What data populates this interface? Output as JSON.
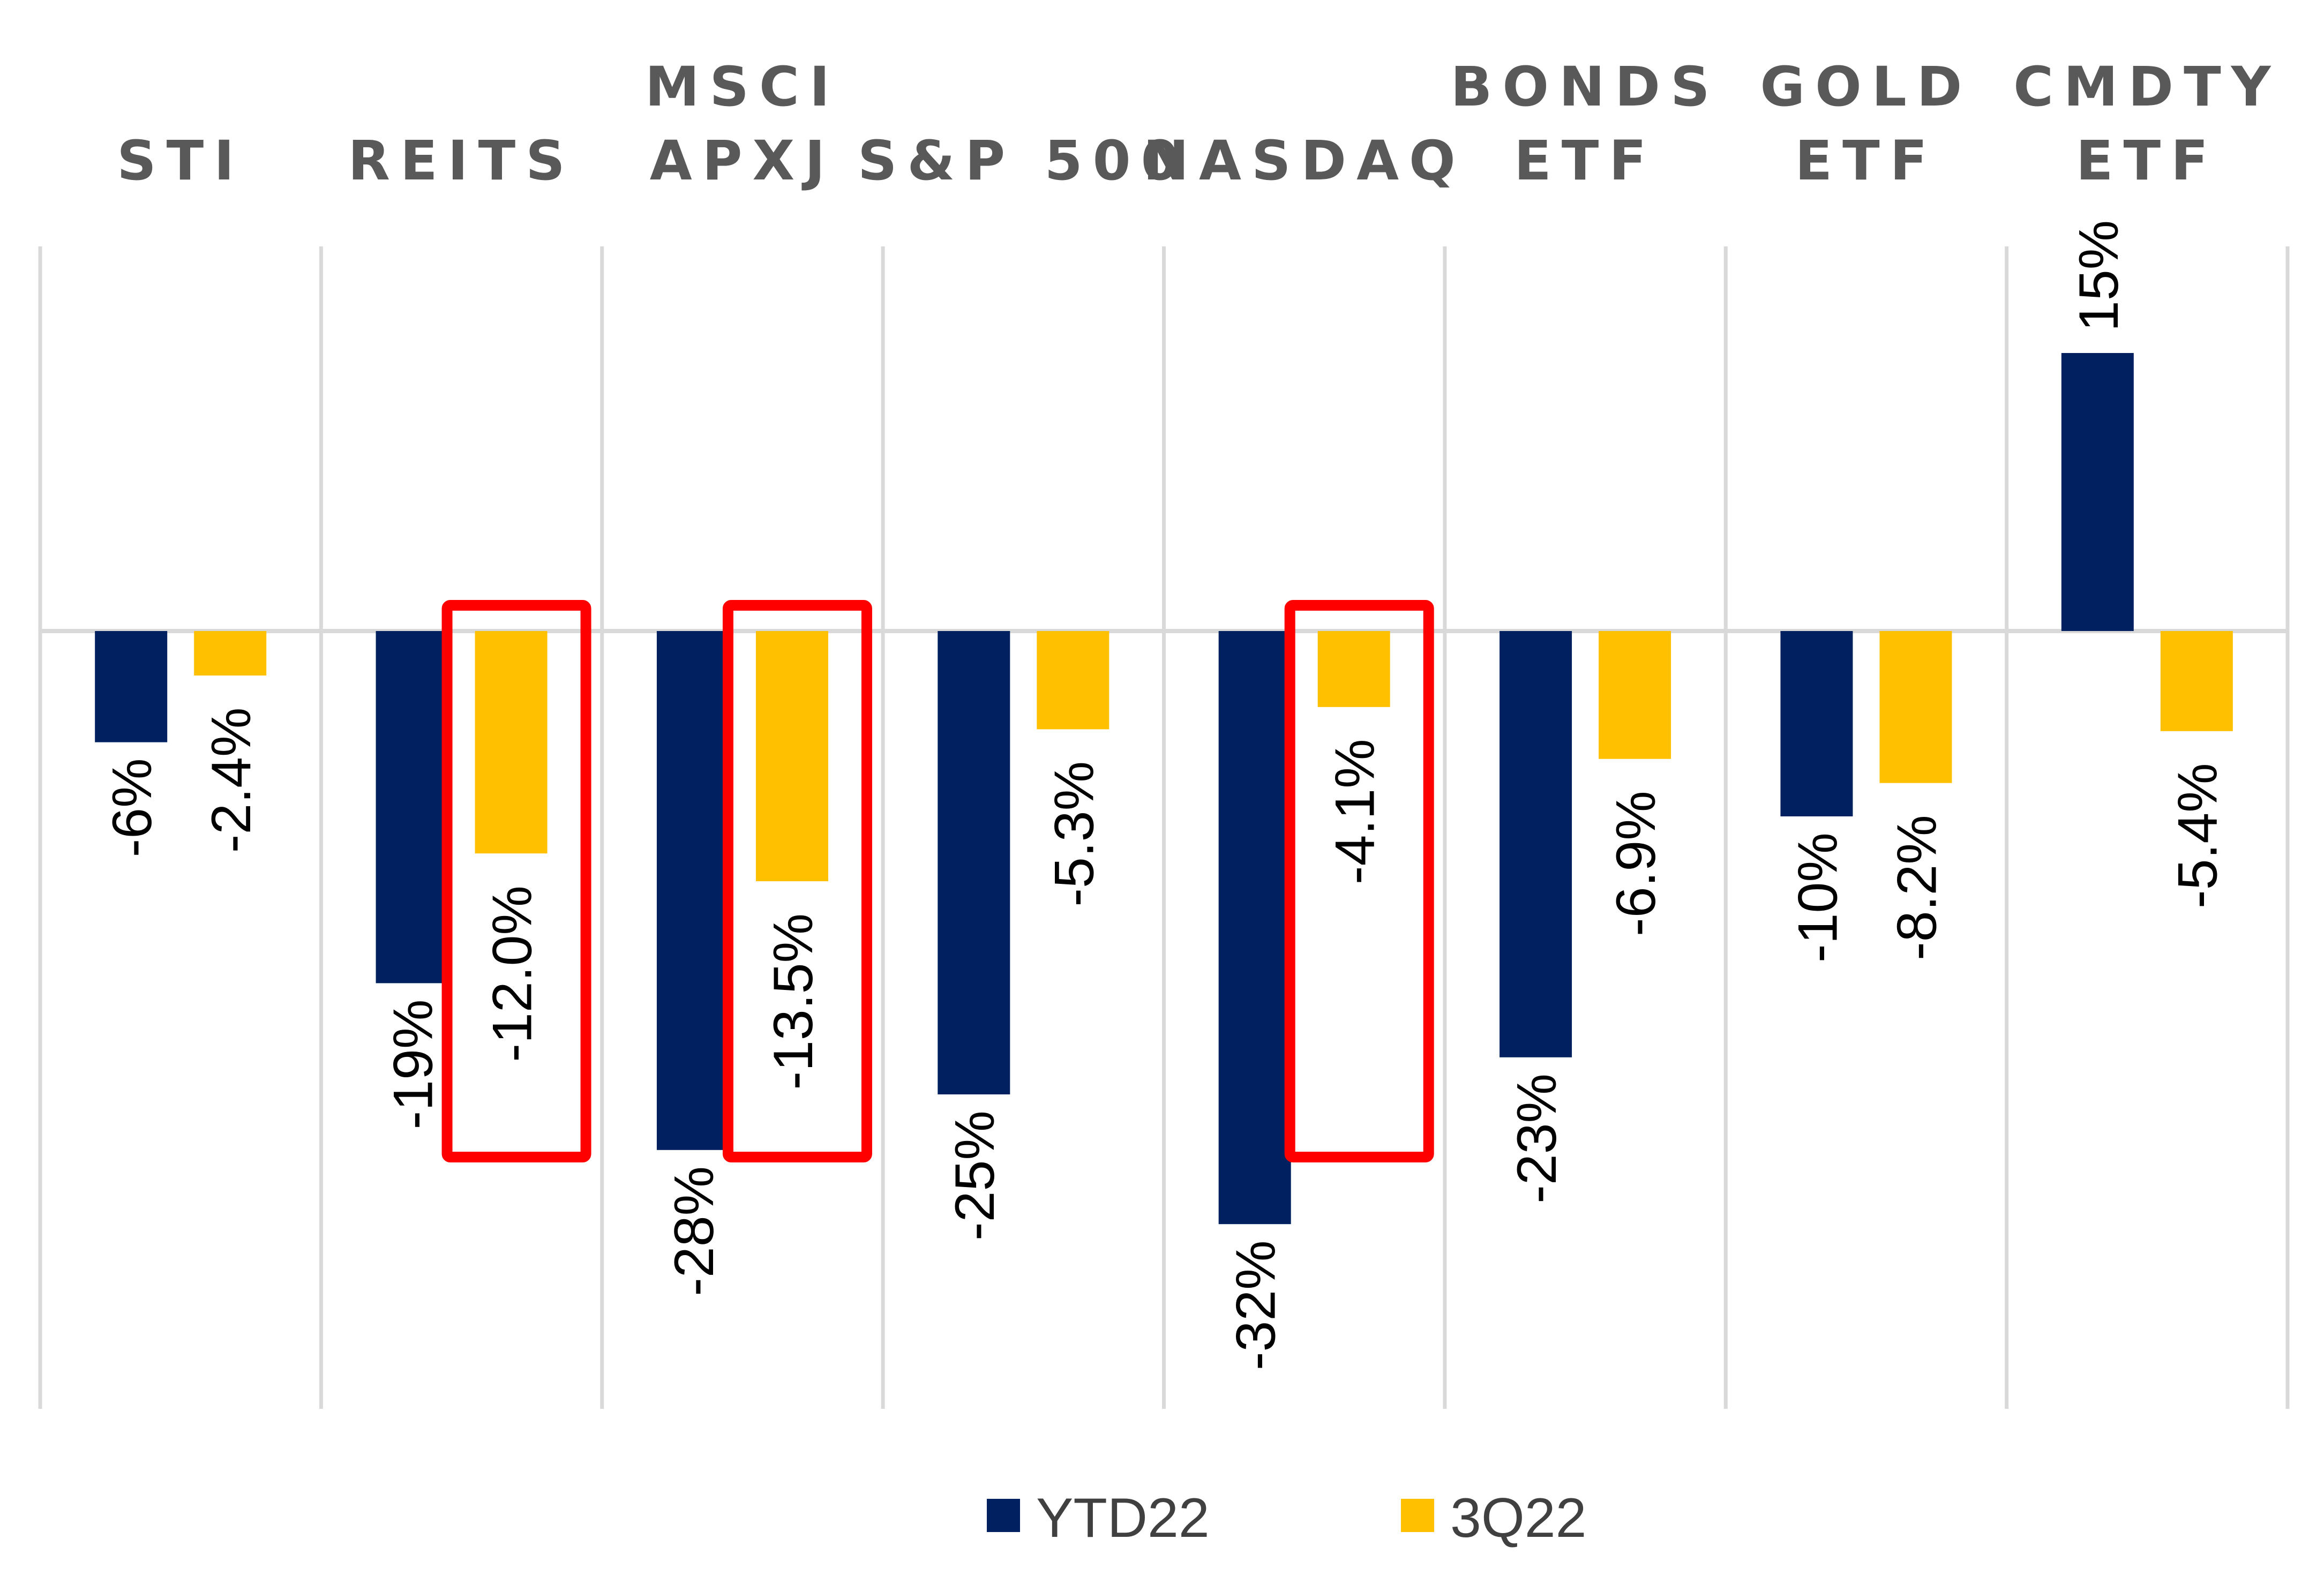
{
  "chart_data": {
    "type": "bar",
    "title": "",
    "xlabel": "",
    "ylabel": "",
    "categories": [
      [
        "STI"
      ],
      [
        "REITS"
      ],
      [
        "MSCI",
        "APXJ"
      ],
      [
        "S&P 500"
      ],
      [
        "NASDAQ"
      ],
      [
        "BONDS",
        "ETF"
      ],
      [
        "GOLD",
        "ETF"
      ],
      [
        "CMDTY",
        "ETF"
      ]
    ],
    "series": [
      {
        "name": "YTD22",
        "color": "#002060",
        "values": [
          -6,
          -19,
          -28,
          -25,
          -32,
          -23,
          -10,
          15
        ],
        "labels": [
          "-6%",
          "-19%",
          "-28%",
          "-25%",
          "-32%",
          "-23%",
          "-10%",
          "15%"
        ]
      },
      {
        "name": "3Q22",
        "color": "#FFC000",
        "values": [
          -2.4,
          -12.0,
          -13.5,
          -5.3,
          -4.1,
          -6.9,
          -8.2,
          -5.4
        ],
        "labels": [
          "-2.4%",
          "-12.0%",
          "-13.5%",
          "-5.3%",
          "-4.1%",
          "-6.9%",
          "-8.2%",
          "-5.4%"
        ]
      }
    ],
    "ylim": [
      -40,
      20
    ],
    "grid": "vertical",
    "legend": "bottom-center",
    "highlighted": [
      {
        "category": "REITS",
        "series": "3Q22"
      },
      {
        "category": "MSCI APXJ",
        "series": "3Q22"
      },
      {
        "category": "NASDAQ",
        "series": "3Q22"
      }
    ],
    "highlight_color": "#FF0000"
  }
}
